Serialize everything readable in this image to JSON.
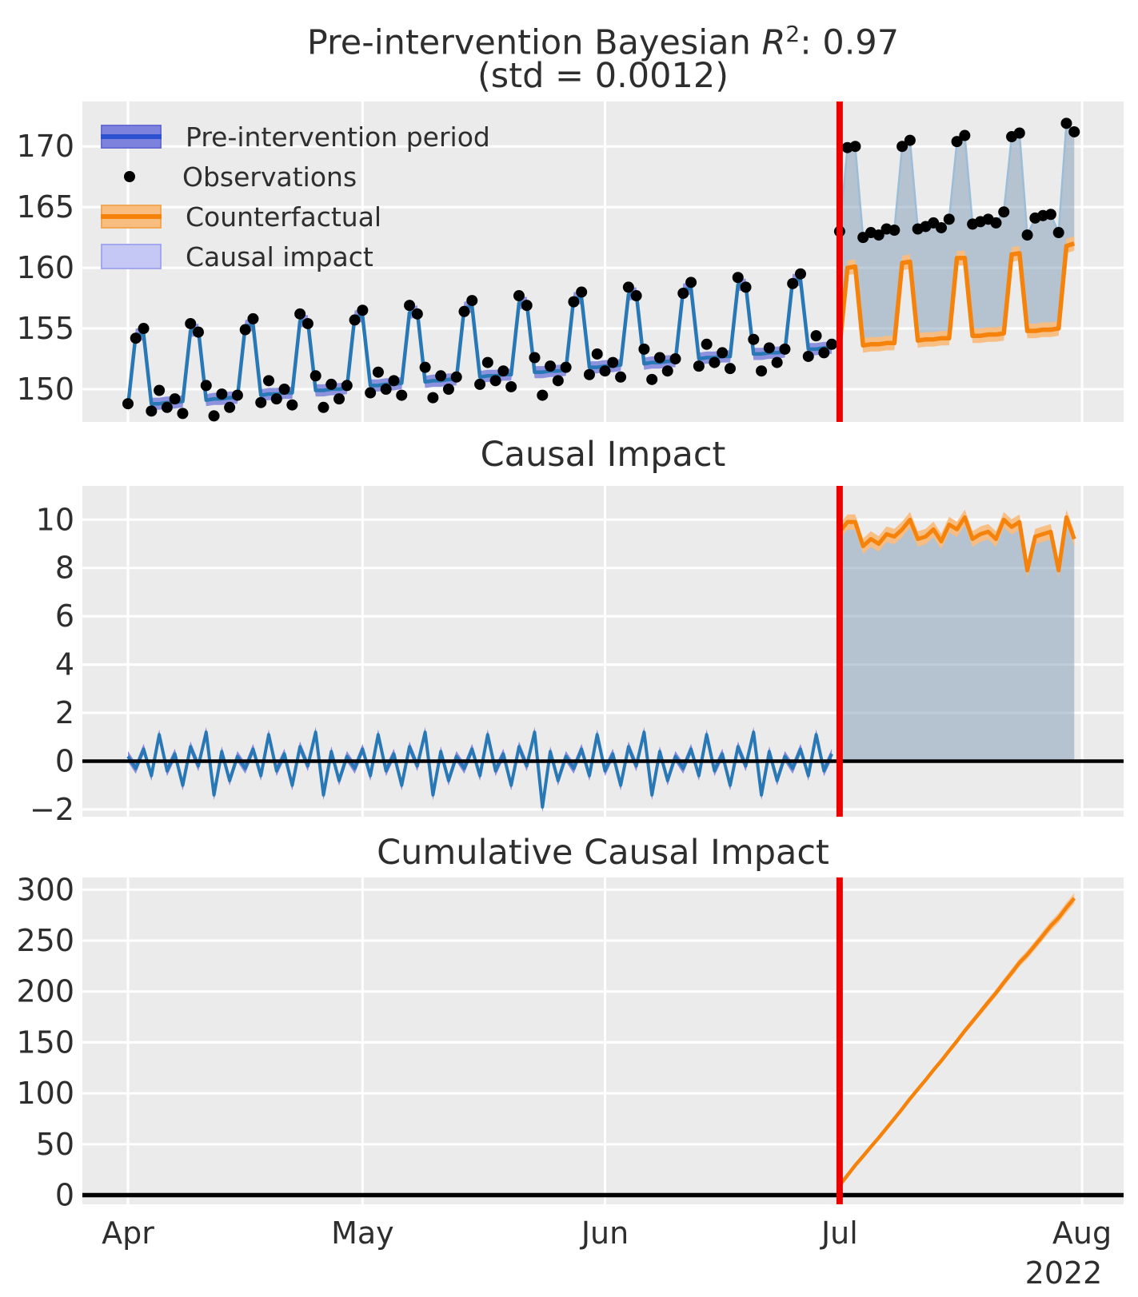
{
  "figure": {
    "title": {
      "prefix": "Pre-intervention Bayesian ",
      "stat_symbol": "R",
      "stat_exponent": "2",
      "suffix": ": 0.97",
      "line2": "(std = 0.0012)"
    }
  },
  "legend": {
    "items": [
      {
        "label": "Pre-intervention period",
        "swatch": "band-line"
      },
      {
        "label": "Observations",
        "swatch": "dot"
      },
      {
        "label": "Counterfactual",
        "swatch": "band-line"
      },
      {
        "label": "Causal impact",
        "swatch": "patch"
      }
    ]
  },
  "colors": {
    "axes_bg": "#ebebeb",
    "grid": "#ffffff",
    "text": "#2e2e2e",
    "pre_line": "#2878b5",
    "pre_band": "#7d82dd",
    "counterfactual_line": "#f5820b",
    "counterfactual_band": "#f9bd80",
    "impact_fill": "rgba(125,156,180,0.5)",
    "post_obs_line": "#9cbdd8",
    "observation_dot": "#000000",
    "intervention_line": "#ec0000",
    "zero_line": "#000000",
    "legend_pre_line": "#2b50d0",
    "legend_pre_band_edge": "#686dd6",
    "legend_cf_band_edge": "#f2a757",
    "impact_patch": "#c5c7f4",
    "impact_patch_edge": "#a3a7ee"
  },
  "axis": {
    "months": [
      "Apr",
      "May",
      "Jun",
      "Jul",
      "Aug"
    ],
    "month_day_index": [
      0,
      30,
      61,
      91,
      122
    ],
    "year_label": "2022",
    "intervention_day_index": 91
  },
  "chart_data": [
    {
      "type": "line",
      "name": "fit-and-observations",
      "title": "Pre-intervention Bayesian R²: 0.97 (std = 0.0012)",
      "ylim": [
        147.3,
        173.7
      ],
      "yticks": [
        150,
        155,
        160,
        165,
        170
      ],
      "x_unit": "days since 2022-04-01",
      "x_start_pre": 0,
      "x_start_post": 91,
      "bands": {
        "pre_fit_halfwidth": 0.5,
        "counterfactual_halfwidth": 0.6
      },
      "series": {
        "observations_pre": [
          148.8,
          154.2,
          155.0,
          148.2,
          149.9,
          148.5,
          149.2,
          148.0,
          155.4,
          154.7,
          150.3,
          147.8,
          149.6,
          148.5,
          149.5,
          154.9,
          155.8,
          148.9,
          150.7,
          149.2,
          150.0,
          148.7,
          156.2,
          155.4,
          151.1,
          148.5,
          150.4,
          149.2,
          150.3,
          155.7,
          156.5,
          149.7,
          151.4,
          150.0,
          150.7,
          149.5,
          156.9,
          156.2,
          151.8,
          149.3,
          151.1,
          150.0,
          151.0,
          156.4,
          157.3,
          150.4,
          152.2,
          150.7,
          151.5,
          150.2,
          157.7,
          156.9,
          152.6,
          149.5,
          151.9,
          150.7,
          151.8,
          157.2,
          158.0,
          151.2,
          152.9,
          151.5,
          152.2,
          151.0,
          158.4,
          157.7,
          153.3,
          150.8,
          152.6,
          151.5,
          152.5,
          157.9,
          158.8,
          151.9,
          153.7,
          152.2,
          153.0,
          151.7,
          159.2,
          158.4,
          154.1,
          151.5,
          153.4,
          152.2,
          153.3,
          158.7,
          159.5,
          152.7,
          154.4,
          153.0,
          153.7
        ],
        "pre_intervention_fit": [
          148.6,
          154.5,
          154.5,
          148.8,
          148.8,
          148.9,
          148.9,
          149.0,
          154.8,
          154.9,
          149.1,
          149.2,
          149.2,
          149.3,
          149.3,
          155.2,
          155.3,
          149.5,
          149.6,
          149.6,
          149.7,
          149.7,
          155.6,
          155.6,
          149.9,
          149.9,
          150.0,
          150.0,
          150.1,
          156.0,
          156.0,
          150.3,
          150.3,
          150.4,
          150.4,
          150.5,
          156.3,
          156.4,
          150.6,
          150.7,
          150.7,
          150.8,
          150.8,
          156.7,
          156.8,
          151.0,
          151.1,
          151.1,
          151.2,
          151.2,
          157.1,
          157.1,
          151.4,
          151.4,
          151.5,
          151.5,
          151.6,
          157.5,
          157.5,
          151.8,
          151.8,
          151.9,
          151.9,
          152.0,
          157.8,
          157.9,
          152.1,
          152.2,
          152.2,
          152.3,
          152.3,
          158.2,
          158.3,
          152.5,
          152.6,
          152.6,
          152.7,
          152.7,
          158.6,
          158.6,
          152.9,
          152.9,
          153.0,
          153.0,
          153.1,
          159.0,
          159.0,
          153.3,
          153.3,
          153.4,
          153.4
        ],
        "observations_post": [
          163.0,
          169.9,
          170.0,
          162.5,
          162.9,
          162.7,
          163.2,
          163.1,
          170.0,
          170.5,
          163.2,
          163.4,
          163.7,
          163.3,
          164.0,
          170.4,
          170.9,
          163.6,
          163.8,
          164.0,
          163.7,
          164.6,
          170.8,
          171.1,
          162.7,
          164.1,
          164.3,
          164.4,
          162.9,
          171.9,
          171.2
        ],
        "counterfactual": [
          153.5,
          160.0,
          160.1,
          153.6,
          153.7,
          153.7,
          153.8,
          153.8,
          160.4,
          160.5,
          154.0,
          154.1,
          154.1,
          154.2,
          154.2,
          160.8,
          160.8,
          154.4,
          154.4,
          154.5,
          154.5,
          154.6,
          161.1,
          161.2,
          154.8,
          154.8,
          154.9,
          154.9,
          155.0,
          161.8,
          162.0
        ]
      }
    },
    {
      "type": "line",
      "name": "causal-impact",
      "title": "Causal Impact",
      "ylim": [
        -2.3,
        11.4
      ],
      "yticks": [
        -2,
        0,
        2,
        4,
        6,
        8,
        10
      ],
      "zero_line": true,
      "x_start_pre": 0,
      "x_start_post": 91,
      "bands": {
        "impact_pre_halfwidth": 0.22,
        "impact_post_halfwidth": 0.32
      },
      "series": {
        "impact_pre": [
          0.2,
          -0.3,
          0.5,
          -0.6,
          1.1,
          -0.4,
          0.3,
          -1.0,
          0.6,
          -0.2,
          1.2,
          -1.4,
          0.4,
          -0.8,
          0.2,
          -0.3,
          0.5,
          -0.6,
          1.1,
          -0.4,
          0.3,
          -1.0,
          0.6,
          -0.2,
          1.2,
          -1.4,
          0.4,
          -0.8,
          0.2,
          -0.3,
          0.5,
          -0.6,
          1.1,
          -0.4,
          0.3,
          -1.0,
          0.6,
          -0.2,
          1.2,
          -1.4,
          0.4,
          -0.8,
          0.2,
          -0.3,
          0.5,
          -0.6,
          1.1,
          -0.4,
          0.3,
          -1.0,
          0.6,
          -0.2,
          1.2,
          -1.9,
          0.4,
          -0.8,
          0.2,
          -0.3,
          0.5,
          -0.6,
          1.1,
          -0.4,
          0.3,
          -1.0,
          0.6,
          -0.2,
          1.2,
          -1.4,
          0.4,
          -0.8,
          0.2,
          -0.3,
          0.5,
          -0.6,
          1.1,
          -0.4,
          0.3,
          -1.0,
          0.6,
          -0.2,
          1.2,
          -1.4,
          0.4,
          -0.8,
          0.2,
          -0.3,
          0.5,
          -0.6,
          1.1,
          -0.4,
          0.3
        ],
        "impact_post": [
          9.5,
          9.9,
          9.9,
          8.9,
          9.2,
          9.0,
          9.4,
          9.3,
          9.6,
          10.0,
          9.2,
          9.3,
          9.6,
          9.1,
          9.8,
          9.6,
          10.1,
          9.2,
          9.4,
          9.5,
          9.2,
          10.0,
          9.7,
          9.9,
          7.9,
          9.3,
          9.4,
          9.5,
          7.9,
          10.1,
          9.2
        ]
      }
    },
    {
      "type": "line",
      "name": "cumulative-causal-impact",
      "title": "Cumulative Causal Impact",
      "ylim": [
        0,
        315
      ],
      "yticks": [
        0,
        50,
        100,
        150,
        200,
        250,
        300
      ],
      "x_start_post": 91,
      "band_halfwidth_start": 0.6,
      "band_halfwidth_end": 5.1,
      "series": {
        "cumulative_impact_post": [
          9.5,
          19.4,
          29.3,
          38.2,
          47.4,
          56.4,
          65.8,
          75.1,
          84.7,
          94.7,
          103.9,
          113.2,
          122.8,
          131.9,
          141.7,
          151.3,
          161.4,
          170.6,
          180.0,
          189.5,
          198.7,
          208.7,
          218.4,
          228.3,
          236.2,
          245.5,
          254.9,
          264.4,
          272.3,
          282.4,
          291.6
        ]
      }
    }
  ]
}
